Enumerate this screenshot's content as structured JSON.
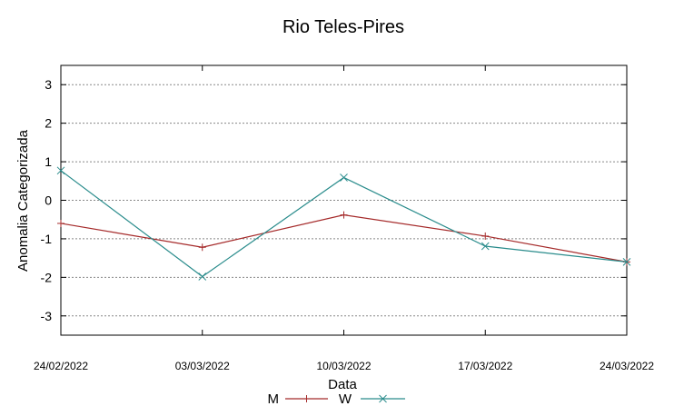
{
  "chart_data": {
    "type": "line",
    "title": "Rio Teles-Pires",
    "xlabel": "Data",
    "ylabel": "Anomalia Categorizada",
    "categories": [
      "24/02/2022",
      "03/03/2022",
      "10/03/2022",
      "17/03/2022",
      "24/03/2022"
    ],
    "ylim": [
      -3.5,
      3.5
    ],
    "yticks": [
      3,
      2,
      1,
      0,
      -1,
      -2,
      -3
    ],
    "grid": true,
    "legend_position": "bottom",
    "series": [
      {
        "name": "M",
        "marker": "+",
        "color": "#a52a2a",
        "values": [
          -0.6,
          -1.22,
          -0.38,
          -0.93,
          -1.6
        ]
      },
      {
        "name": "W",
        "marker": "x",
        "color": "#2a8c8c",
        "values": [
          0.77,
          -1.98,
          0.59,
          -1.19,
          -1.6
        ]
      }
    ]
  }
}
